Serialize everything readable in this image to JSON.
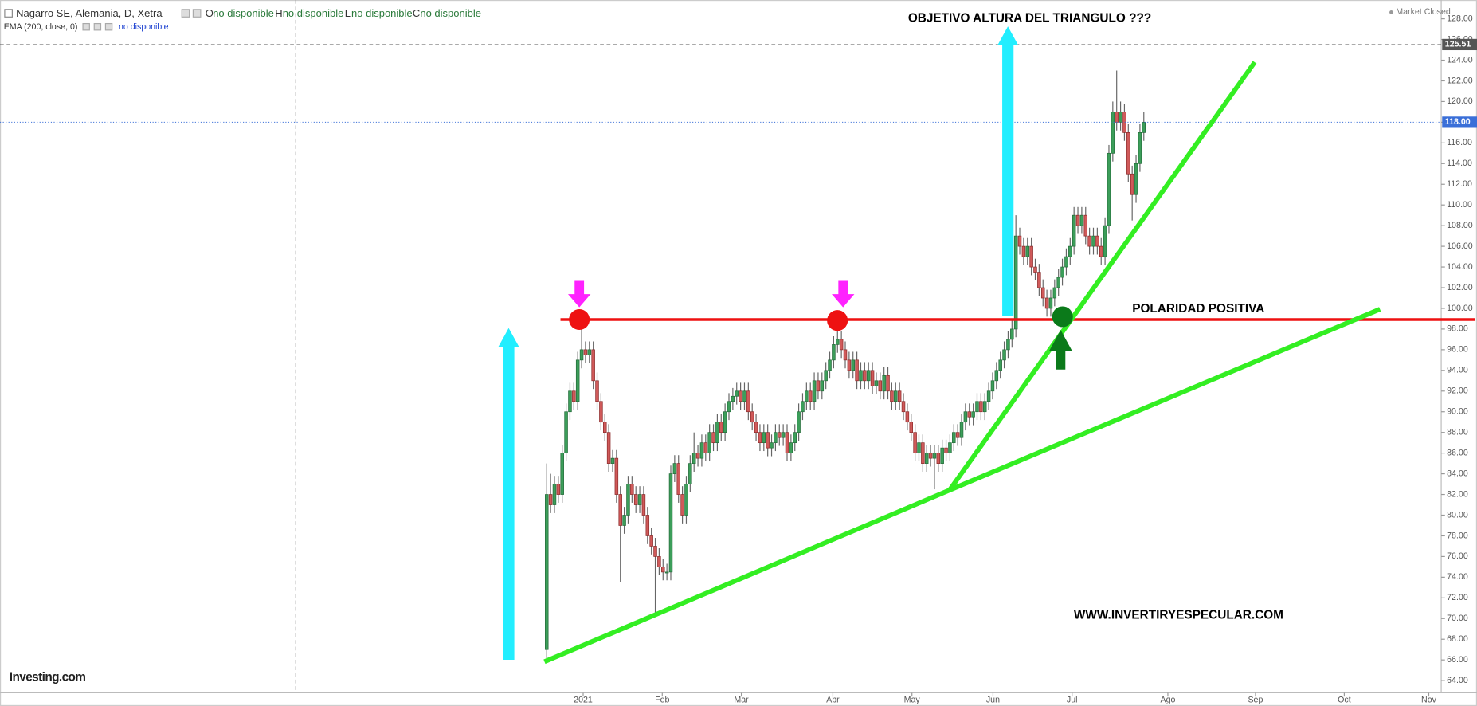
{
  "chart_data": {
    "type": "candlestick",
    "title": "Nagarro SE, Alemania, D, Xetra",
    "legend": [
      {
        "key": "O",
        "value": "no disponible"
      },
      {
        "key": "H",
        "value": "no disponible"
      },
      {
        "key": "L",
        "value": "no disponible"
      },
      {
        "key": "C",
        "value": "no disponible"
      }
    ],
    "indicator": "EMA (200, close, 0)",
    "indicator_value": "no disponible",
    "status": "Market Closed",
    "logo": "Investing.com",
    "annotations": [
      "OBJETIVO ALTURA DEL TRIANGULO ???",
      "POLARIDAD POSITIVA",
      "WWW.INVERTIRYESPECULAR.COM"
    ],
    "up_color": "#3c9e5a",
    "down_color": "#d05a5a",
    "open": [
      67,
      82,
      81,
      83,
      82,
      86,
      90,
      92,
      91,
      95,
      96,
      95.5,
      96,
      93,
      91,
      89,
      88,
      85,
      85.5,
      82,
      79,
      80,
      83,
      82,
      81,
      82,
      80,
      78,
      77,
      76,
      75,
      74.5,
      74.5,
      84,
      85,
      82,
      80,
      83,
      85,
      86,
      85.5,
      87,
      86,
      88,
      87,
      89,
      88,
      90,
      91,
      91.5,
      92,
      91,
      92,
      90,
      89,
      88,
      87,
      88,
      86.5,
      87,
      88,
      87.5,
      88,
      86,
      87,
      88,
      90,
      91,
      92,
      91,
      93,
      92,
      93,
      94,
      95,
      96.5,
      97,
      96,
      95,
      94,
      95,
      93,
      94,
      93,
      94,
      92.5,
      93,
      92,
      93.5,
      92,
      91,
      92,
      91,
      90,
      89,
      88,
      86,
      87,
      85,
      86,
      85.5,
      86,
      85,
      86.5,
      86,
      87,
      88,
      87.5,
      89,
      90,
      89.5,
      90,
      91,
      90,
      91,
      92,
      93,
      94,
      95,
      96,
      97,
      98,
      107,
      106,
      105,
      106,
      104,
      103.5,
      102,
      101,
      100,
      101,
      102,
      103,
      104,
      105,
      106,
      109,
      108,
      109,
      107,
      106,
      107,
      106,
      105,
      108,
      115,
      119,
      118,
      119,
      117,
      113,
      111,
      114,
      117
    ],
    "high": [
      85,
      84,
      83.8,
      83.8,
      86.8,
      90.8,
      92.8,
      92.8,
      95.8,
      99,
      96.8,
      96.8,
      96.8,
      93.8,
      91.8,
      89.8,
      88.8,
      86.3,
      86.3,
      82.8,
      80.8,
      83.8,
      83.8,
      82.8,
      82.8,
      82.8,
      80.8,
      78.8,
      77.8,
      76.8,
      75.8,
      75.3,
      84.8,
      85.8,
      85.8,
      82.8,
      83.8,
      85.8,
      88,
      86.8,
      87.8,
      87.8,
      88.8,
      88.8,
      89.8,
      89.8,
      90.8,
      91.8,
      92.3,
      92.8,
      92.8,
      92.8,
      92.8,
      90.8,
      89.8,
      88.8,
      88.8,
      88.8,
      87.8,
      88.8,
      88.8,
      88.8,
      88.8,
      87.8,
      88.8,
      90.8,
      91.8,
      92.8,
      92.8,
      93.8,
      93.8,
      93.8,
      94.8,
      95.8,
      97.3,
      98.6,
      97.8,
      96.8,
      95.8,
      95.8,
      95.8,
      94.8,
      94.8,
      94.8,
      94.8,
      93.8,
      93.8,
      94.3,
      94.3,
      92.8,
      92.8,
      92.8,
      91.8,
      90.8,
      89.8,
      88.8,
      87.8,
      87.8,
      86.8,
      86.8,
      86.8,
      86.8,
      87.3,
      87.3,
      87.8,
      88.8,
      88.8,
      89.8,
      90.8,
      90.8,
      90.8,
      91.8,
      91.8,
      91.8,
      92.8,
      93.8,
      94.8,
      95.8,
      96.8,
      97.8,
      98.8,
      109,
      107.8,
      106.8,
      106.8,
      106.8,
      104.8,
      104.3,
      102.8,
      101.8,
      101.8,
      102.8,
      103.8,
      104.8,
      105.8,
      106.8,
      109.8,
      109.8,
      109.8,
      109.8,
      107.8,
      107.8,
      107.8,
      106.8,
      108.8,
      115.8,
      120,
      123,
      120,
      119.8,
      117.8,
      113.8,
      114.8,
      117.8,
      119
    ],
    "low": [
      66,
      80.2,
      80.2,
      81.2,
      81.2,
      85.2,
      89.2,
      90.2,
      90.2,
      94.2,
      94.7,
      94.7,
      92.2,
      90.2,
      88.2,
      87.2,
      84.2,
      84.2,
      81.2,
      73.5,
      78.2,
      79.2,
      81.2,
      80.2,
      80.2,
      79.2,
      77.2,
      76.2,
      70.5,
      74.2,
      73.7,
      73.7,
      73.7,
      83.2,
      81.2,
      79.2,
      79.2,
      82.2,
      84.2,
      84.7,
      84.7,
      85.2,
      85.2,
      86.2,
      86.2,
      87.2,
      87.2,
      89.2,
      90.2,
      90.7,
      90.2,
      90.2,
      89.2,
      88.2,
      87.2,
      86.2,
      86.2,
      85.7,
      85.7,
      86.2,
      86.7,
      86.7,
      85.2,
      85.2,
      86.2,
      87.2,
      89.2,
      90.2,
      90.2,
      90.2,
      91.2,
      91.2,
      92.2,
      93.2,
      94.2,
      95.7,
      95.2,
      94.2,
      93.2,
      93.2,
      92.2,
      92.2,
      92.2,
      92.2,
      91.7,
      91.7,
      91.2,
      91.2,
      91.2,
      90.2,
      90.2,
      90.2,
      89.2,
      88.2,
      87.2,
      85.2,
      85.2,
      84.2,
      84.2,
      84.7,
      82.5,
      84.2,
      84.2,
      85.2,
      85.2,
      86.2,
      86.7,
      86.7,
      88.2,
      88.7,
      88.7,
      89.2,
      89.2,
      89.2,
      90.2,
      91.2,
      92.2,
      93.2,
      94.2,
      95.2,
      96.2,
      97.2,
      105.2,
      104.2,
      104.2,
      103.2,
      102.7,
      101.2,
      100.2,
      99.2,
      99.2,
      100.2,
      101.2,
      102.2,
      103.2,
      104.2,
      105.2,
      107.2,
      107.2,
      106.2,
      105.2,
      105.2,
      105.2,
      104.2,
      104.2,
      107.2,
      114.2,
      117.2,
      117.2,
      116.2,
      112.2,
      108.5,
      110.2,
      113.2,
      116.2
    ],
    "close": [
      82,
      81,
      83,
      82,
      86,
      90,
      92,
      91,
      95,
      96,
      95.5,
      96,
      93,
      91,
      89,
      88,
      85,
      85.5,
      82,
      79,
      80,
      83,
      82,
      81,
      82,
      80,
      78,
      77,
      76,
      75,
      74.5,
      74.5,
      84,
      85,
      82,
      80,
      83,
      85,
      86,
      85.5,
      87,
      86,
      88,
      87,
      89,
      88,
      90,
      91,
      91.5,
      92,
      91,
      92,
      90,
      89,
      88,
      87,
      88,
      86.5,
      87,
      88,
      87.5,
      88,
      86,
      87,
      88,
      90,
      91,
      92,
      91,
      93,
      92,
      93,
      94,
      95,
      96.5,
      97,
      96,
      95,
      94,
      95,
      93,
      94,
      93,
      94,
      92.5,
      93,
      92,
      93.5,
      92,
      91,
      92,
      91,
      90,
      89,
      88,
      86,
      87,
      85,
      86,
      85.5,
      86,
      85,
      86.5,
      86,
      87,
      88,
      87.5,
      89,
      90,
      89.5,
      90,
      91,
      90,
      91,
      92,
      93,
      94,
      95,
      96,
      97,
      98,
      107,
      106,
      105,
      106,
      104,
      103.5,
      102,
      101,
      100,
      101,
      102,
      103,
      104,
      105,
      106,
      109,
      108,
      109,
      107,
      106,
      107,
      106,
      105,
      108,
      115,
      119,
      118,
      119,
      117,
      113,
      111,
      114,
      117,
      118
    ],
    "xlim": [
      -141,
      230.7
    ],
    "xticks": [
      {
        "value": 9.4,
        "label": "2021"
      },
      {
        "value": 29.8,
        "label": "Feb"
      },
      {
        "value": 50.2,
        "label": "Mar"
      },
      {
        "value": 73.8,
        "label": "Abr"
      },
      {
        "value": 94.2,
        "label": "May"
      },
      {
        "value": 115.1,
        "label": "Jun"
      },
      {
        "value": 135.5,
        "label": "Jul"
      },
      {
        "value": 160.2,
        "label": "Ago"
      },
      {
        "value": 182.8,
        "label": "Sep"
      },
      {
        "value": 205.7,
        "label": "Oct"
      },
      {
        "value": 227.5,
        "label": "Nov"
      }
    ],
    "ylim": [
      62.82,
      129.82
    ],
    "yticks": [
      {
        "value": 64,
        "label": "64.00"
      },
      {
        "value": 66,
        "label": "66.00"
      },
      {
        "value": 68,
        "label": "68.00"
      },
      {
        "value": 70,
        "label": "70.00"
      },
      {
        "value": 72,
        "label": "72.00"
      },
      {
        "value": 74,
        "label": "74.00"
      },
      {
        "value": 76,
        "label": "76.00"
      },
      {
        "value": 78,
        "label": "78.00"
      },
      {
        "value": 80,
        "label": "80.00"
      },
      {
        "value": 82,
        "label": "82.00"
      },
      {
        "value": 84,
        "label": "84.00"
      },
      {
        "value": 86,
        "label": "86.00"
      },
      {
        "value": 88,
        "label": "88.00"
      },
      {
        "value": 90,
        "label": "90.00"
      },
      {
        "value": 92,
        "label": "92.00"
      },
      {
        "value": 94,
        "label": "94.00"
      },
      {
        "value": 96,
        "label": "96.00"
      },
      {
        "value": 98,
        "label": "98.00"
      },
      {
        "value": 100,
        "label": "100.00"
      },
      {
        "value": 102,
        "label": "102.00"
      },
      {
        "value": 104,
        "label": "104.00"
      },
      {
        "value": 106,
        "label": "106.00"
      },
      {
        "value": 108,
        "label": "108.00"
      },
      {
        "value": 110,
        "label": "110.00"
      },
      {
        "value": 112,
        "label": "112.00"
      },
      {
        "value": 114,
        "label": "114.00"
      },
      {
        "value": 116,
        "label": "116.00"
      },
      {
        "value": 118,
        "label": "118.00"
      },
      {
        "value": 120,
        "label": "120.00"
      },
      {
        "value": 122,
        "label": "122.00"
      },
      {
        "value": 124,
        "label": "124.00"
      },
      {
        "value": 126,
        "label": "126.00"
      },
      {
        "value": 128,
        "label": "128.00"
      }
    ],
    "price_lines": [
      {
        "value": 125.51,
        "label": "125.51",
        "color": "#555555"
      },
      {
        "value": 118,
        "label": "118.00",
        "color": "#3a6fd8"
      }
    ]
  }
}
